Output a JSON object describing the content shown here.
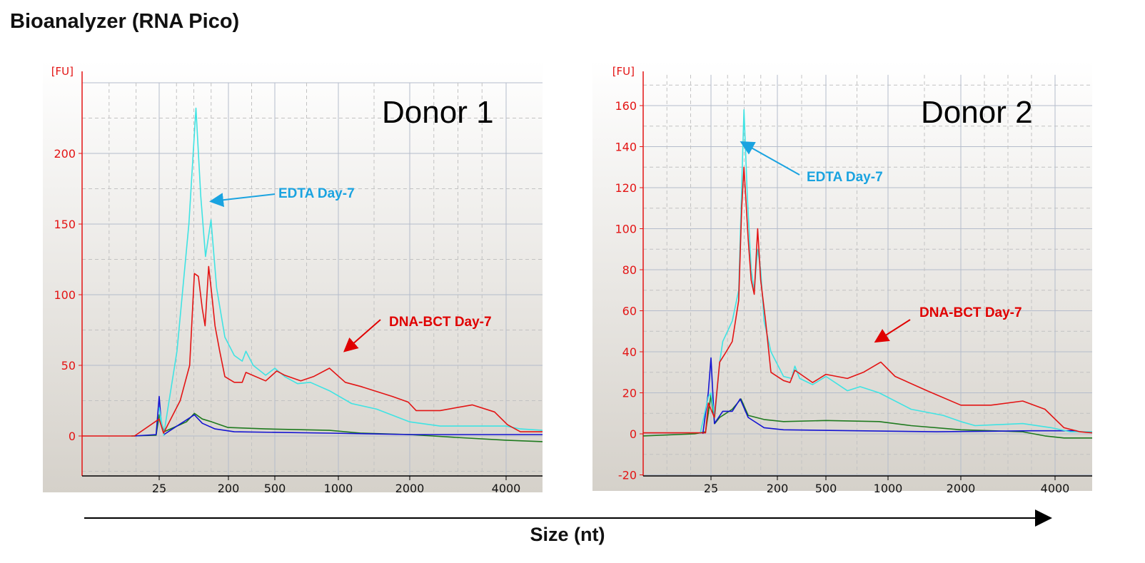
{
  "title": "Bioanalyzer (RNA Pico)",
  "x_axis_title": "Size (nt)",
  "colors": {
    "edta": "#3fe3e3",
    "dnabct": "#e31414",
    "blue": "#1414d2",
    "green": "#1e7a1e",
    "edta_label": "#1aa3e0",
    "dnabct_label": "#e00000",
    "tick_label": "#e31414"
  },
  "chart_data": [
    {
      "type": "line",
      "panel_label": "Donor 1",
      "y_unit": "[FU]",
      "ylim": [
        -28,
        250
      ],
      "yticks": [
        0,
        50,
        100,
        150,
        200
      ],
      "xticks": [
        25,
        200,
        500,
        1000,
        2000,
        4000
      ],
      "xlim": [
        0,
        4740
      ],
      "grid": true,
      "annotations": [
        {
          "text": "EDTA Day-7",
          "series": "edta"
        },
        {
          "text": "DNA-BCT Day-7",
          "series": "dnabct"
        }
      ],
      "series": [
        {
          "key": "edta",
          "color": "#3fe3e3",
          "points": [
            [
              37,
              0
            ],
            [
              25,
              20
            ],
            [
              30,
              8
            ],
            [
              37,
              2
            ],
            [
              70,
              60
            ],
            [
              100,
              150
            ],
            [
              118,
              232
            ],
            [
              130,
              170
            ],
            [
              142,
              127
            ],
            [
              156,
              153
            ],
            [
              170,
              105
            ],
            [
              191,
              70
            ],
            [
              238,
              57
            ],
            [
              289,
              53
            ],
            [
              313,
              60
            ],
            [
              360,
              50
            ],
            [
              441,
              43
            ],
            [
              500,
              48
            ],
            [
              578,
              42
            ],
            [
              679,
              37
            ],
            [
              779,
              38
            ],
            [
              930,
              32
            ],
            [
              1185,
              23
            ],
            [
              1537,
              19
            ],
            [
              2000,
              10
            ],
            [
              2630,
              7
            ],
            [
              4000,
              7
            ],
            [
              4290,
              5
            ],
            [
              4740,
              4
            ]
          ]
        },
        {
          "key": "dnabct",
          "color": "#e31414",
          "points": [
            [
              0,
              0
            ],
            [
              17,
              0
            ],
            [
              25,
              12
            ],
            [
              36,
              2
            ],
            [
              78,
              25
            ],
            [
              102,
              50
            ],
            [
              114,
              115
            ],
            [
              124,
              113
            ],
            [
              134,
              90
            ],
            [
              141,
              78
            ],
            [
              150,
              120
            ],
            [
              158,
              100
            ],
            [
              166,
              78
            ],
            [
              178,
              60
            ],
            [
              191,
              42
            ],
            [
              238,
              38
            ],
            [
              289,
              38
            ],
            [
              313,
              45
            ],
            [
              441,
              39
            ],
            [
              515,
              46
            ],
            [
              578,
              43
            ],
            [
              704,
              39
            ],
            [
              804,
              42
            ],
            [
              930,
              48
            ],
            [
              1097,
              38
            ],
            [
              1317,
              35
            ],
            [
              1757,
              28
            ],
            [
              1978,
              24
            ],
            [
              2133,
              18
            ],
            [
              2630,
              18
            ],
            [
              3296,
              22
            ],
            [
              3760,
              17
            ],
            [
              4027,
              8
            ],
            [
              4290,
              3
            ],
            [
              4740,
              3
            ]
          ]
        },
        {
          "key": "green",
          "color": "#1e7a1e",
          "points": [
            [
              16,
              0
            ],
            [
              24,
              0.5
            ],
            [
              25,
              15
            ],
            [
              37,
              3
            ],
            [
              70,
              7
            ],
            [
              94,
              10
            ],
            [
              114,
              16
            ],
            [
              134,
              12
            ],
            [
              158,
              10
            ],
            [
              199,
              6
            ],
            [
              441,
              5
            ],
            [
              930,
              4
            ],
            [
              1317,
              2
            ],
            [
              2000,
              1
            ],
            [
              2960,
              -1
            ],
            [
              4000,
              -3
            ],
            [
              4740,
              -4
            ]
          ]
        },
        {
          "key": "blue",
          "color": "#1414d2",
          "points": [
            [
              17,
              0
            ],
            [
              24,
              1
            ],
            [
              25,
              28
            ],
            [
              30,
              10
            ],
            [
              37,
              1
            ],
            [
              70,
              7
            ],
            [
              114,
              15
            ],
            [
              134,
              9
            ],
            [
              166,
              5
            ],
            [
              238,
              3
            ],
            [
              930,
              2
            ],
            [
              2000,
              1
            ],
            [
              4000,
              1
            ],
            [
              4740,
              1
            ]
          ]
        }
      ]
    },
    {
      "type": "line",
      "panel_label": "Donor 2",
      "y_unit": "[FU]",
      "ylim": [
        -20,
        175
      ],
      "yticks": [
        -20,
        0,
        20,
        40,
        60,
        80,
        100,
        120,
        140,
        160
      ],
      "xticks": [
        25,
        200,
        500,
        1000,
        2000,
        4000
      ],
      "xlim": [
        0,
        4781
      ],
      "grid": true,
      "annotations": [
        {
          "text": "EDTA Day-7",
          "series": "edta"
        },
        {
          "text": "DNA-BCT Day-7",
          "series": "dnabct"
        }
      ],
      "series": [
        {
          "key": "edta",
          "color": "#3fe3e3",
          "points": [
            [
              21,
              0
            ],
            [
              24,
              18
            ],
            [
              25,
              20
            ],
            [
              35,
              8
            ],
            [
              48,
              35
            ],
            [
              56,
              45
            ],
            [
              81,
              55
            ],
            [
              98,
              70
            ],
            [
              106,
              120
            ],
            [
              112,
              158
            ],
            [
              121,
              115
            ],
            [
              131,
              80
            ],
            [
              139,
              70
            ],
            [
              148,
              90
            ],
            [
              156,
              80
            ],
            [
              165,
              55
            ],
            [
              183,
              40
            ],
            [
              238,
              28
            ],
            [
              288,
              27
            ],
            [
              308,
              33
            ],
            [
              338,
              27
            ],
            [
              418,
              24
            ],
            [
              500,
              28
            ],
            [
              673,
              21
            ],
            [
              776,
              23
            ],
            [
              929,
              20
            ],
            [
              1317,
              12
            ],
            [
              1757,
              9
            ],
            [
              2000,
              6
            ],
            [
              2303,
              4
            ],
            [
              3313,
              5
            ],
            [
              3920,
              3
            ],
            [
              4323,
              1
            ],
            [
              4781,
              1
            ]
          ]
        },
        {
          "key": "dnabct",
          "color": "#e31414",
          "points": [
            [
              0,
              0.5
            ],
            [
              23,
              0.5
            ],
            [
              24,
              15
            ],
            [
              34,
              8
            ],
            [
              48,
              35
            ],
            [
              65,
              40
            ],
            [
              81,
              45
            ],
            [
              98,
              65
            ],
            [
              106,
              110
            ],
            [
              112,
              130
            ],
            [
              123,
              95
            ],
            [
              131,
              75
            ],
            [
              139,
              68
            ],
            [
              148,
              100
            ],
            [
              156,
              75
            ],
            [
              169,
              55
            ],
            [
              183,
              30
            ],
            [
              238,
              26
            ],
            [
              278,
              25
            ],
            [
              308,
              31
            ],
            [
              418,
              25
            ],
            [
              500,
              29
            ],
            [
              673,
              27
            ],
            [
              801,
              30
            ],
            [
              942,
              35
            ],
            [
              1097,
              28
            ],
            [
              1537,
              21
            ],
            [
              2000,
              14
            ],
            [
              2640,
              14
            ],
            [
              3313,
              16
            ],
            [
              3785,
              12
            ],
            [
              4188,
              3
            ],
            [
              4525,
              1
            ],
            [
              4781,
              0.5
            ]
          ]
        },
        {
          "key": "green",
          "color": "#1e7a1e",
          "points": [
            [
              0,
              -1
            ],
            [
              19,
              0
            ],
            [
              23,
              1
            ],
            [
              25,
              19
            ],
            [
              35,
              5
            ],
            [
              48,
              8
            ],
            [
              81,
              12
            ],
            [
              104,
              17
            ],
            [
              123,
              9
            ],
            [
              165,
              7
            ],
            [
              238,
              6
            ],
            [
              500,
              6.5
            ],
            [
              929,
              6
            ],
            [
              1317,
              4
            ],
            [
              2000,
              2
            ],
            [
              3313,
              1
            ],
            [
              3785,
              -1
            ],
            [
              4188,
              -2
            ],
            [
              4781,
              -2
            ]
          ]
        },
        {
          "key": "blue",
          "color": "#1414d2",
          "points": [
            [
              22,
              0
            ],
            [
              24,
              20
            ],
            [
              25,
              37
            ],
            [
              34,
              5
            ],
            [
              56,
              11
            ],
            [
              81,
              11
            ],
            [
              102,
              17
            ],
            [
              123,
              8
            ],
            [
              165,
              3
            ],
            [
              238,
              2
            ],
            [
              1669,
              1
            ],
            [
              3515,
              1.5
            ],
            [
              4457,
              1.5
            ]
          ]
        }
      ]
    }
  ]
}
